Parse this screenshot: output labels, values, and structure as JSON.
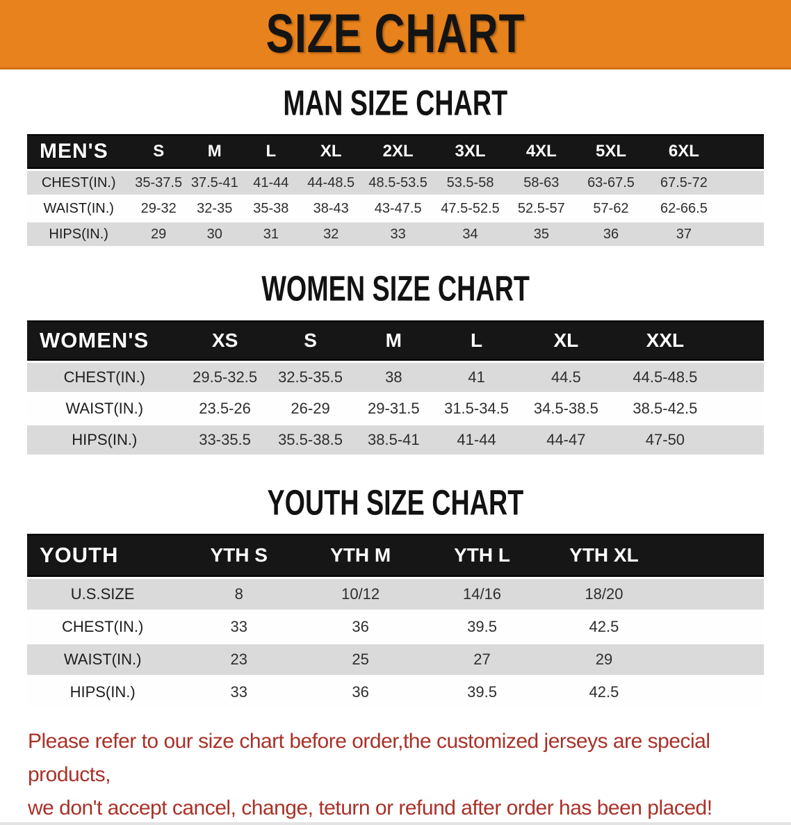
{
  "banner": {
    "title": "SIZE CHART",
    "bg_color": "#E8821C",
    "text_color": "#141414"
  },
  "colors": {
    "table_header_bg": "#161616",
    "table_header_text": "#FFFFFF",
    "row_stripe_gray": "#DADADA",
    "row_stripe_white": "#FEFEFE",
    "notice_red": "#A93128"
  },
  "sections": [
    {
      "heading": "MAN SIZE CHART",
      "table": {
        "label": "MEN'S",
        "columns": [
          "S",
          "M",
          "L",
          "XL",
          "2XL",
          "3XL",
          "4XL",
          "5XL",
          "6XL"
        ],
        "col_widths": [
          "14%",
          "7.7%",
          "7.5%",
          "7.8%",
          "8.5%",
          "9.7%",
          "9.9%",
          "9.4%",
          "9.5%",
          "10.3%",
          "5.7%"
        ],
        "trailing_empty": true,
        "rows": [
          {
            "label": "CHEST(IN.)",
            "values": [
              "35-37.5",
              "37.5-41",
              "41-44",
              "44-48.5",
              "48.5-53.5",
              "53.5-58",
              "58-63",
              "63-67.5",
              "67.5-72"
            ]
          },
          {
            "label": "WAIST(IN.)",
            "values": [
              "29-32",
              "32-35",
              "35-38",
              "38-43",
              "43-47.5",
              "47.5-52.5",
              "52.5-57",
              "57-62",
              "62-66.5"
            ]
          },
          {
            "label": "HIPS(IN.)",
            "values": [
              "29",
              "30",
              "31",
              "32",
              "33",
              "34",
              "35",
              "36",
              "37"
            ]
          }
        ]
      }
    },
    {
      "heading": "WOMEN SIZE CHART",
      "table": {
        "label": "WOMEN'S",
        "columns": [
          "XS",
          "S",
          "M",
          "L",
          "XL",
          "XXL"
        ],
        "col_widths": [
          "21%",
          "11.7%",
          "11.5%",
          "11.1%",
          "11.4%",
          "12.9%",
          "14%",
          "6.4%"
        ],
        "trailing_empty": true,
        "rows": [
          {
            "label": "CHEST(IN.)",
            "values": [
              "29.5-32.5",
              "32.5-35.5",
              "38",
              "41",
              "44.5",
              "44.5-48.5"
            ]
          },
          {
            "label": "WAIST(IN.)",
            "values": [
              "23.5-26",
              "26-29",
              "29-31.5",
              "31.5-34.5",
              "34.5-38.5",
              "38.5-42.5"
            ]
          },
          {
            "label": "HIPS(IN.)",
            "values": [
              "33-35.5",
              "35.5-38.5",
              "38.5-41",
              "41-44",
              "44-47",
              "47-50"
            ]
          }
        ]
      }
    },
    {
      "heading": "YOUTH SIZE CHART",
      "table": {
        "label": "YOUTH",
        "columns": [
          "YTH S",
          "YTH M",
          "YTH L",
          "YTH XL"
        ],
        "col_widths": [
          "20.5%",
          "16.5%",
          "16.5%",
          "16.5%",
          "16.6%",
          "13.4%"
        ],
        "trailing_empty": true,
        "rows": [
          {
            "label": "U.S.SIZE",
            "values": [
              "8",
              "10/12",
              "14/16",
              "18/20"
            ]
          },
          {
            "label": "CHEST(IN.)",
            "values": [
              "33",
              "36",
              "39.5",
              "42.5"
            ]
          },
          {
            "label": "WAIST(IN.)",
            "values": [
              "23",
              "25",
              "27",
              "29"
            ]
          },
          {
            "label": "HIPS(IN.)",
            "values": [
              "33",
              "36",
              "39.5",
              "42.5"
            ]
          }
        ]
      }
    }
  ],
  "footer": {
    "line1": "Please refer to our size chart before order,the customized jerseys are special products,",
    "line2": "we don't accept cancel, change, teturn or refund after order has been placed!"
  }
}
